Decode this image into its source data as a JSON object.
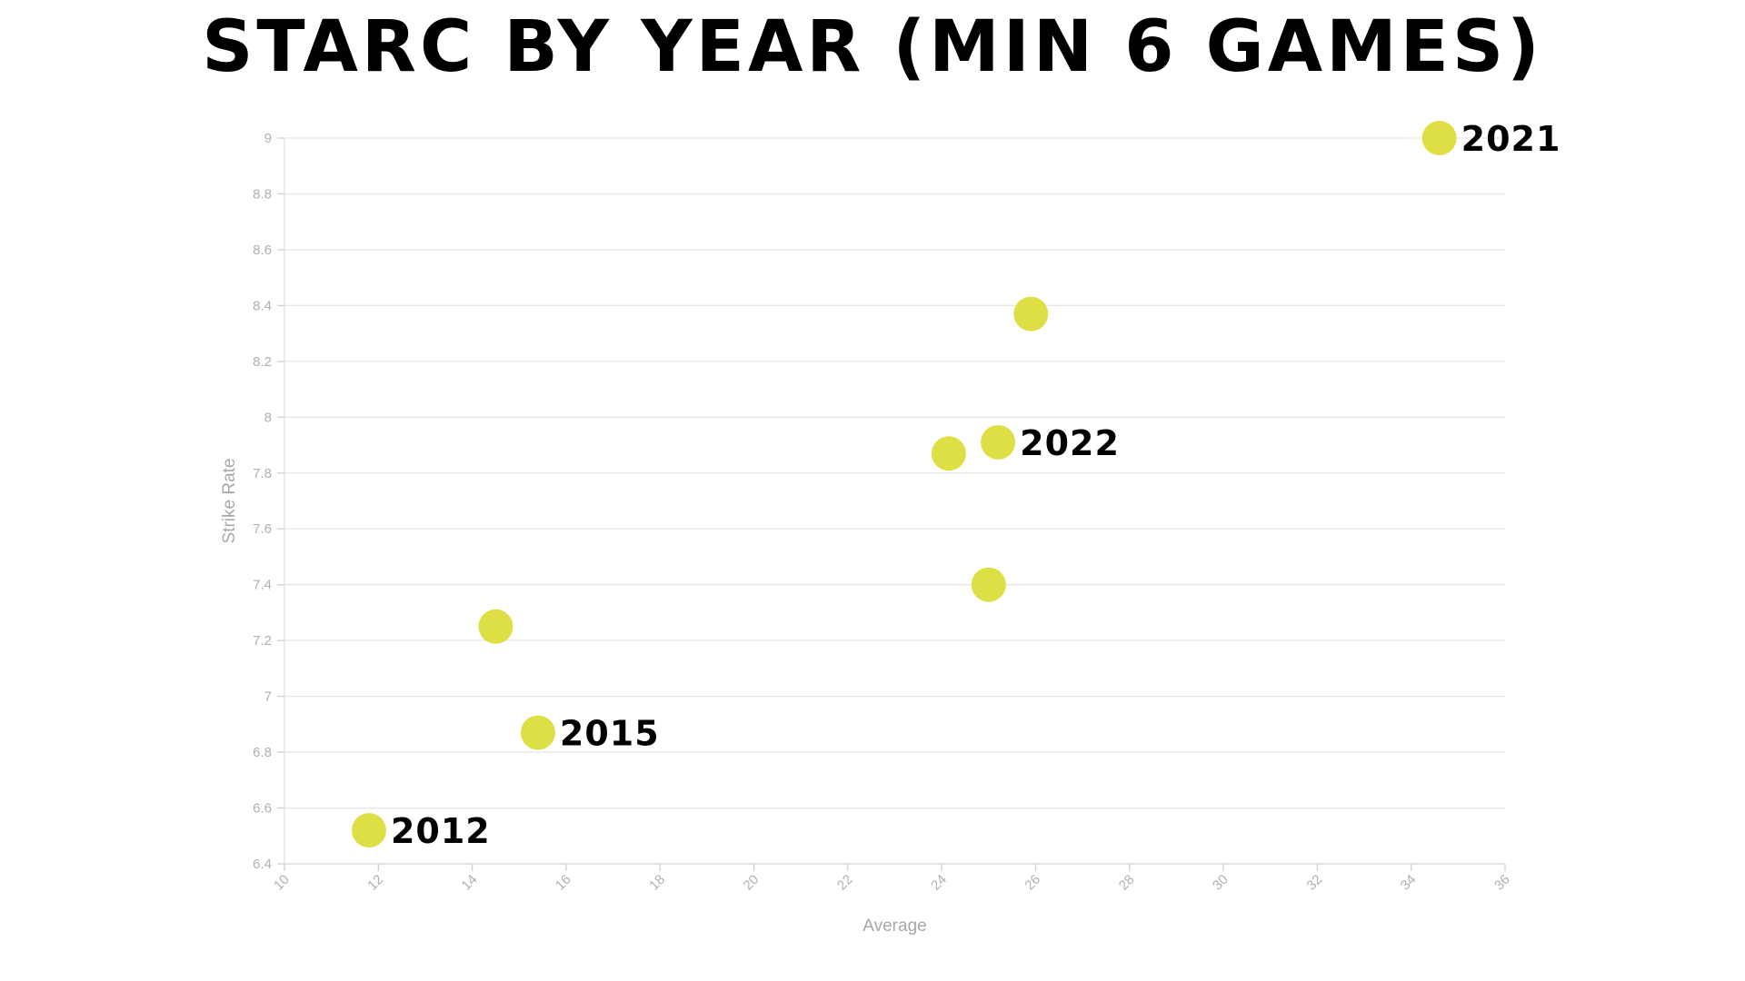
{
  "chart_data": {
    "type": "scatter",
    "title": "STARC BY YEAR (MIN 6 GAMES)",
    "xlabel": "Average",
    "ylabel": "Strike Rate",
    "xlim": [
      10,
      36
    ],
    "ylim": [
      6.4,
      9
    ],
    "x_ticks": [
      "10",
      "12",
      "14",
      "16",
      "18",
      "20",
      "22",
      "24",
      "26",
      "28",
      "30",
      "32",
      "34",
      "36"
    ],
    "y_ticks": [
      "6.4",
      "6.6",
      "6.8",
      "7",
      "7.2",
      "7.4",
      "7.6",
      "7.8",
      "8",
      "8.2",
      "8.4",
      "8.6",
      "8.8",
      "9"
    ],
    "grid": true,
    "point_color": "#dede45",
    "points": [
      {
        "x": 11.8,
        "y": 6.52,
        "label": "2012"
      },
      {
        "x": 14.5,
        "y": 7.25,
        "label": ""
      },
      {
        "x": 15.4,
        "y": 6.87,
        "label": "2015"
      },
      {
        "x": 24.15,
        "y": 7.87,
        "label": ""
      },
      {
        "x": 25.2,
        "y": 7.91,
        "label": "2022"
      },
      {
        "x": 25.0,
        "y": 7.4,
        "label": ""
      },
      {
        "x": 25.9,
        "y": 8.37,
        "label": ""
      },
      {
        "x": 34.6,
        "y": 9.0,
        "label": "2021"
      }
    ]
  }
}
